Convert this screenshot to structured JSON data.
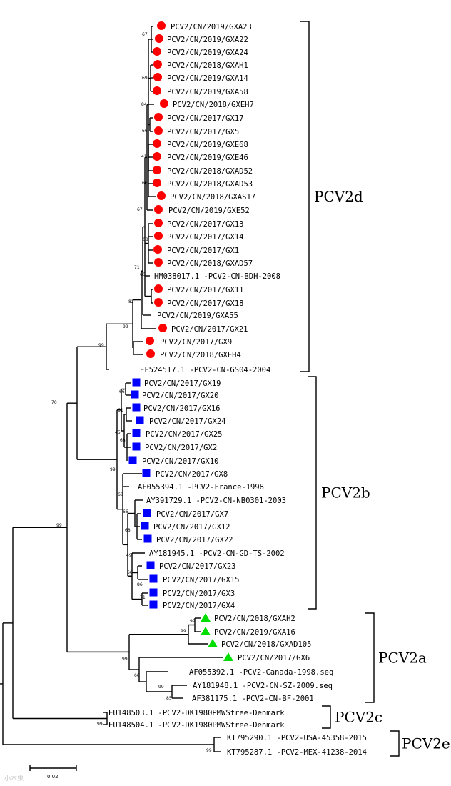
{
  "colors": {
    "pcv2d": "#ff0000",
    "pcv2b": "#0000ff",
    "pcv2a": "#00dd00",
    "line": "#000000"
  },
  "leaves": [
    {
      "label": "PCV2/CN/2019/GXA23",
      "marker": "circle"
    },
    {
      "label": "PCV2/CN/2019/GXA22",
      "marker": "circle"
    },
    {
      "label": "PCV2/CN/2019/GXA24",
      "marker": "circle"
    },
    {
      "label": "PCV2/CN/2018/GXAH1",
      "marker": "circle"
    },
    {
      "label": "PCV2/CN/2019/GXA14",
      "marker": "circle"
    },
    {
      "label": "PCV2/CN/2019/GXA58",
      "marker": "circle"
    },
    {
      "label": "PCV2/CN/2018/GXEH7",
      "marker": "circle"
    },
    {
      "label": "PCV2/CN/2017/GX17",
      "marker": "circle"
    },
    {
      "label": "PCV2/CN/2017/GX5",
      "marker": "circle"
    },
    {
      "label": "PCV2/CN/2019/GXE68",
      "marker": "circle"
    },
    {
      "label": "PCV2/CN/2019/GXE46",
      "marker": "circle"
    },
    {
      "label": "PCV2/CN/2018/GXAD52",
      "marker": "circle"
    },
    {
      "label": "PCV2/CN/2018/GXAD53",
      "marker": "circle"
    },
    {
      "label": "PCV2/CN/2018/GXAS17",
      "marker": "circle"
    },
    {
      "label": "PCV2/CN/2019/GXE52",
      "marker": "circle"
    },
    {
      "label": "PCV2/CN/2017/GX13",
      "marker": "circle"
    },
    {
      "label": "PCV2/CN/2017/GX14",
      "marker": "circle"
    },
    {
      "label": "PCV2/CN/2017/GX1",
      "marker": "circle"
    },
    {
      "label": "PCV2/CN/2018/GXAD57",
      "marker": "circle"
    },
    {
      "label": "HM038017.1 -PCV2-CN-BDH-2008",
      "marker": "none"
    },
    {
      "label": "PCV2/CN/2017/GX11",
      "marker": "circle"
    },
    {
      "label": "PCV2/CN/2017/GX18",
      "marker": "circle"
    },
    {
      "label": "PCV2/CN/2019/GXA55",
      "marker": "none"
    },
    {
      "label": "PCV2/CN/2017/GX21",
      "marker": "circle"
    },
    {
      "label": "PCV2/CN/2017/GX9",
      "marker": "circle"
    },
    {
      "label": "PCV2/CN/2018/GXEH4",
      "marker": "circle"
    },
    {
      "label": "EF524517.1 -PCV2-CN-GS04-2004",
      "marker": "none"
    },
    {
      "label": "PCV2/CN/2017/GX19",
      "marker": "square"
    },
    {
      "label": "PCV2/CN/2017/GX20",
      "marker": "square"
    },
    {
      "label": "PCV2/CN/2017/GX16",
      "marker": "square"
    },
    {
      "label": "PCV2/CN/2017/GX24",
      "marker": "square"
    },
    {
      "label": "PCV2/CN/2017/GX25",
      "marker": "square"
    },
    {
      "label": "PCV2/CN/2017/GX2",
      "marker": "square"
    },
    {
      "label": "PCV2/CN/2017/GX10",
      "marker": "square"
    },
    {
      "label": "PCV2/CN/2017/GX8",
      "marker": "square"
    },
    {
      "label": "AF055394.1 -PCV2-France-1998",
      "marker": "none"
    },
    {
      "label": "AY391729.1 -PCV2-CN-NB0301-2003",
      "marker": "none"
    },
    {
      "label": "PCV2/CN/2017/GX7",
      "marker": "square"
    },
    {
      "label": "PCV2/CN/2017/GX12",
      "marker": "square"
    },
    {
      "label": "PCV2/CN/2017/GX22",
      "marker": "square"
    },
    {
      "label": "AY181945.1 -PCV2-CN-GD-TS-2002",
      "marker": "none"
    },
    {
      "label": "PCV2/CN/2017/GX23",
      "marker": "square"
    },
    {
      "label": "PCV2/CN/2017/GX15",
      "marker": "square"
    },
    {
      "label": "PCV2/CN/2017/GX3",
      "marker": "square"
    },
    {
      "label": "PCV2/CN/2017/GX4",
      "marker": "square"
    },
    {
      "label": "PCV2/CN/2018/GXAH2",
      "marker": "triangle"
    },
    {
      "label": "PCV2/CN/2019/GXA16",
      "marker": "triangle"
    },
    {
      "label": "PCV2/CN/2018/GXAD105",
      "marker": "triangle"
    },
    {
      "label": "PCV2/CN/2017/GX6",
      "marker": "triangle"
    },
    {
      "label": "AF055392.1 -PCV2-Canada-1998.seq",
      "marker": "none"
    },
    {
      "label": "AY181948.1 -PCV2-CN-SZ-2009.seq",
      "marker": "none"
    },
    {
      "label": "AF381175.1 -PCV2-CN-BF-2001",
      "marker": "none"
    },
    {
      "label": "EU148503.1 -PCV2-DK1980PMWSfree-Denmark",
      "marker": "none"
    },
    {
      "label": "EU148504.1 -PCV2-DK1980PMWSfree-Denmark",
      "marker": "none"
    },
    {
      "label": "KT795290.1 -PCV2-USA-45358-2015",
      "marker": "none"
    },
    {
      "label": "KT795287.1 -PCV2-MEX-41238-2014",
      "marker": "none"
    }
  ],
  "clades": [
    {
      "name": "PCV2d",
      "first": 0,
      "last": 26
    },
    {
      "name": "PCV2b",
      "first": 27,
      "last": 44
    },
    {
      "name": "PCV2a",
      "first": 45,
      "last": 51
    },
    {
      "name": "PCV2c",
      "first": 52,
      "last": 53
    },
    {
      "name": "PCV2e",
      "first": 54,
      "last": 55
    }
  ],
  "bootstrap": [
    "67",
    "69",
    "84",
    "66",
    "41",
    "66",
    "67",
    "68",
    "71",
    "66",
    "82",
    "99",
    "99",
    "70",
    "66",
    "61",
    "45",
    "68",
    "99",
    "68",
    "66",
    "68",
    "49",
    "66",
    "86",
    "71",
    "99",
    "99",
    "99",
    "66",
    "99",
    "85",
    "99",
    "99",
    "99"
  ],
  "scale_bar": {
    "label": "0.02"
  },
  "watermark": "小木虫"
}
